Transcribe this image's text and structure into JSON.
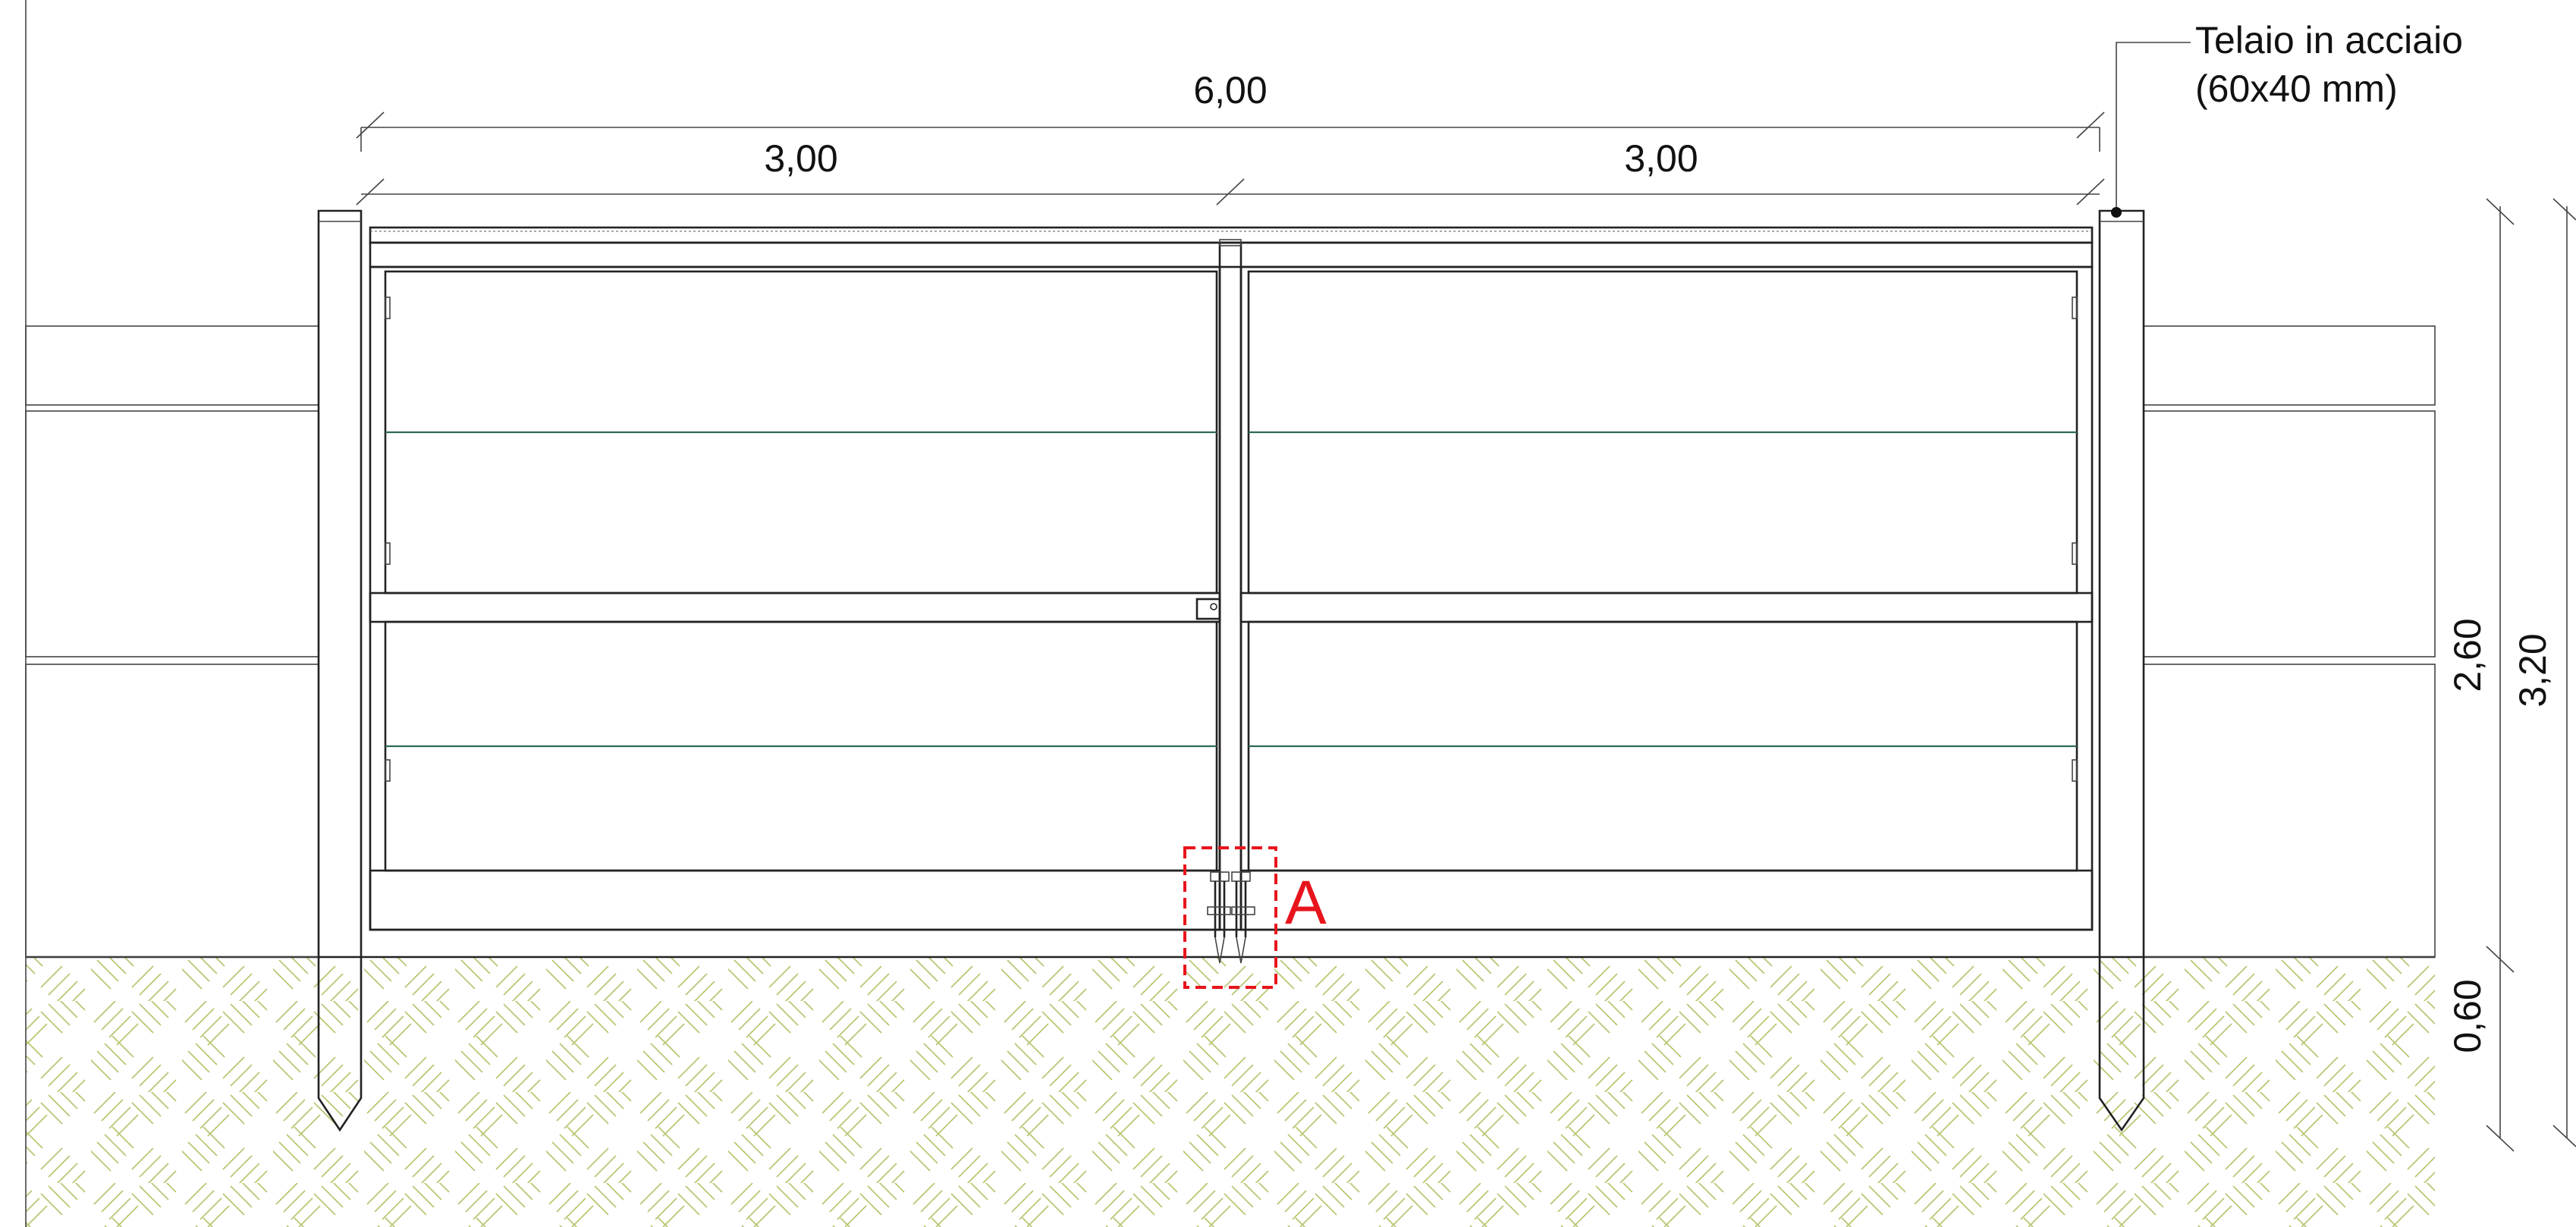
{
  "dimensions": {
    "overall_width": "6,00",
    "left_leaf_width": "3,00",
    "right_leaf_width": "3,00",
    "above_ground_height": "2,60",
    "total_height": "3,20",
    "embedment_depth": "0,60"
  },
  "annotation": {
    "line1": "Telaio in acciaio",
    "line2": "(60x40 mm)"
  },
  "detail_marker": {
    "label": "A",
    "color": "#e8141c"
  },
  "colors": {
    "line": "#222222",
    "mesh": "#2f6b52",
    "fence_mesh": "#3f7a66",
    "stone": "#3f7a70",
    "soil_hatch": "#b9c774"
  }
}
